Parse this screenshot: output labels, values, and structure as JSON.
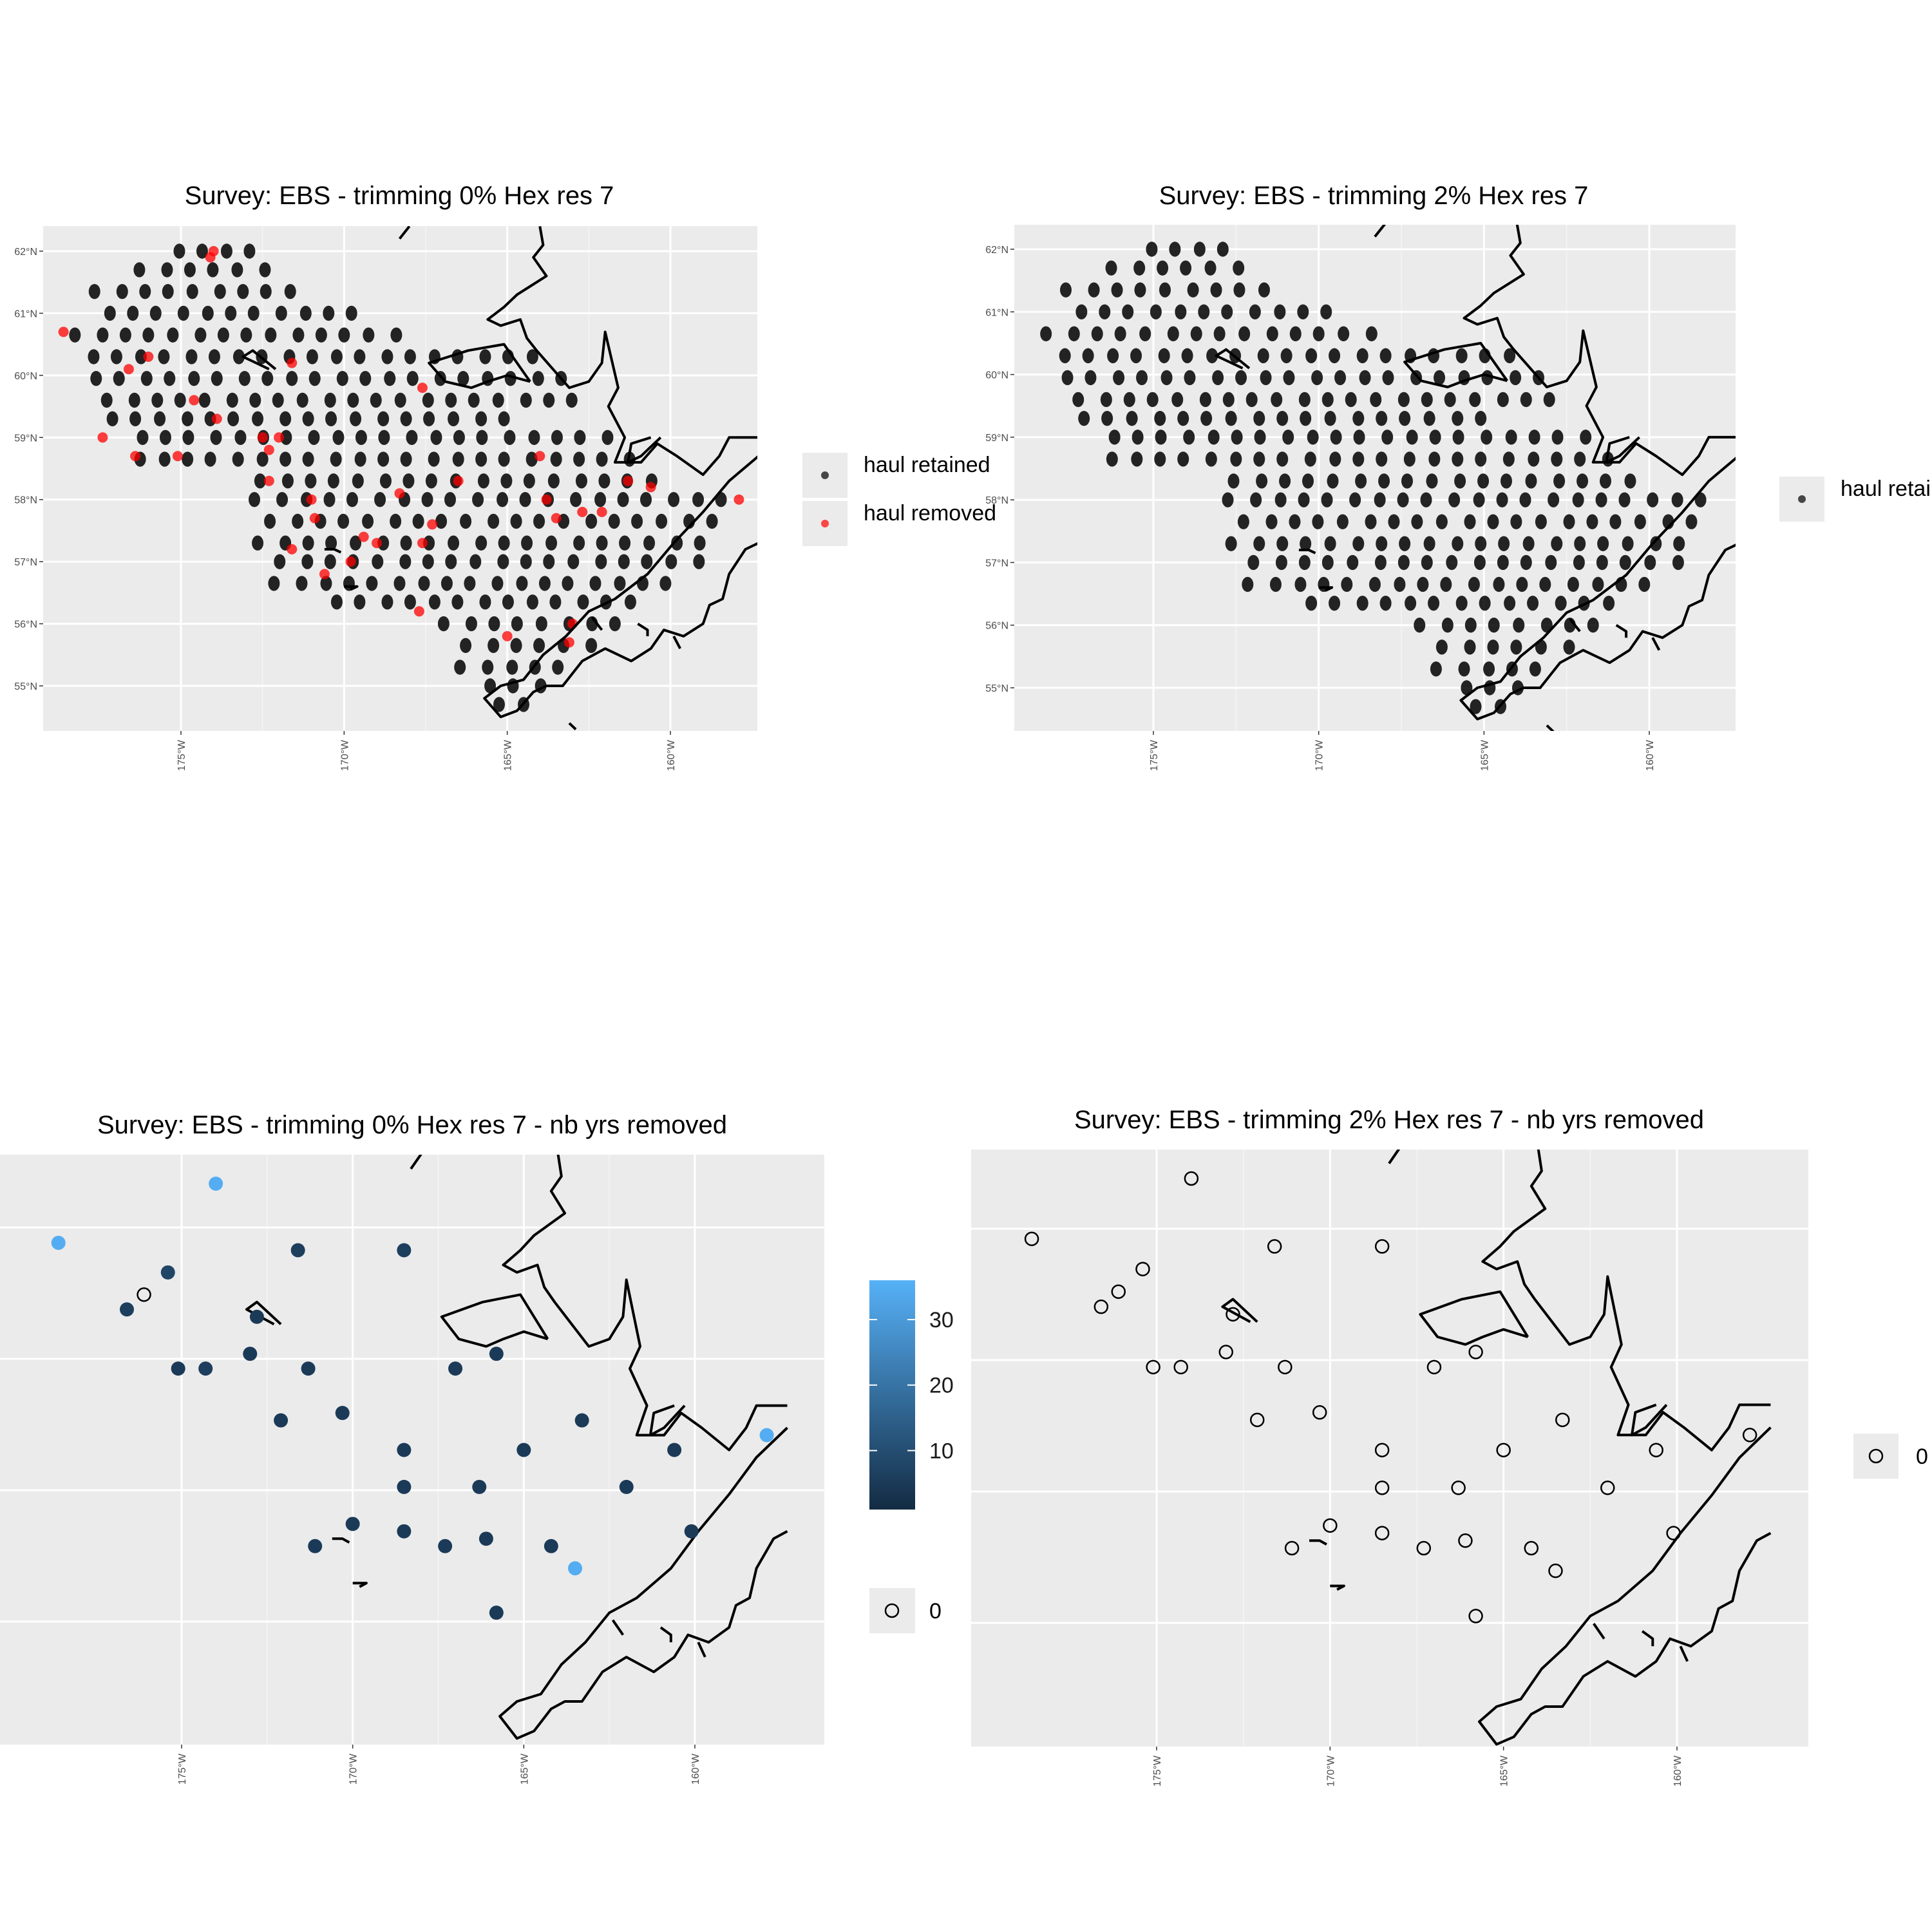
{
  "chart_data": [
    {
      "type": "scatter",
      "title": "Survey: EBS - trimming 0% Hex res 7",
      "x_ticks": [
        "175°W",
        "170°W",
        "165°W",
        "160°W"
      ],
      "y_ticks": [
        "62°N",
        "61°N",
        "60°N",
        "59°N",
        "58°N",
        "57°N",
        "56°N",
        "55°N"
      ],
      "xlim": [
        -179.2,
        -157.3
      ],
      "ylim": [
        54.2,
        62.4
      ],
      "grid": true,
      "legend": {
        "position": "right",
        "entries": [
          {
            "label": "haul retained",
            "color": "#000000"
          },
          {
            "label": "haul removed",
            "color": "#ff0000"
          }
        ]
      },
      "series": [
        {
          "name": "haul retained",
          "color": "#000000",
          "description_values": "regular station grid of haul positions (lon -178 to -158, lat 54.7 to 62)"
        },
        {
          "name": "haul removed",
          "color": "#ff0000",
          "x": [
            -174.0,
            -174.1,
            -178.6,
            -176.0,
            -174.6,
            -173.9,
            -172.0,
            -172.3,
            -177.4,
            -176.4,
            -175.1,
            -172.3,
            -176.6,
            -171.6,
            -167.6,
            -172.5,
            -171.0,
            -168.3,
            -166.5,
            -163.8,
            -162.1,
            -161.3,
            -160.6,
            -157.9,
            -170.9,
            -171.6,
            -169.8,
            -169.0,
            -167.3,
            -162.7,
            -163.5,
            -167.6,
            -163.0,
            -163.1,
            -164.0,
            -169.4,
            -170.6,
            -165.0,
            -167.7
          ],
          "y": [
            62.0,
            61.9,
            60.7,
            60.3,
            59.6,
            59.3,
            59.0,
            58.8,
            59.0,
            58.7,
            58.7,
            58.3,
            60.1,
            60.2,
            59.8,
            59.0,
            58.0,
            58.1,
            58.3,
            58.0,
            57.8,
            58.3,
            58.2,
            58.0,
            57.7,
            57.2,
            57.0,
            57.3,
            57.6,
            57.8,
            57.7,
            57.3,
            56.0,
            55.7,
            58.7,
            57.4,
            56.8,
            55.8,
            56.2
          ]
        }
      ]
    },
    {
      "type": "scatter",
      "title": "Survey: EBS - trimming 2% Hex res 7",
      "x_ticks": [
        "175°W",
        "170°W",
        "165°W",
        "160°W"
      ],
      "y_ticks": [
        "62°N",
        "61°N",
        "60°N",
        "59°N",
        "58°N",
        "57°N",
        "56°N",
        "55°N"
      ],
      "xlim": [
        -179.2,
        -157.3
      ],
      "ylim": [
        54.2,
        62.4
      ],
      "grid": true,
      "legend": {
        "position": "right",
        "entries": [
          {
            "label": "haul retained",
            "color": "#000000"
          }
        ]
      },
      "series": [
        {
          "name": "haul retained",
          "color": "#000000",
          "description_values": "regular station grid of haul positions (lon -178 to -158, lat 54.7 to 62)"
        }
      ]
    },
    {
      "type": "scatter",
      "title": "Survey: EBS - trimming 0% Hex res 7 - nb yrs removed",
      "x_ticks": [
        "175°W",
        "170°W",
        "165°W",
        "160°W"
      ],
      "grid": true,
      "colorbar": {
        "ticks": [
          "10",
          "20",
          "30"
        ],
        "low": "#132b43",
        "high": "#56b1f7",
        "range": [
          1,
          36
        ]
      },
      "legend": {
        "position": "right",
        "entries": [
          {
            "label": "0"
          }
        ]
      },
      "x": [
        -174.0,
        -176.1,
        -178.6,
        -175.4,
        -172.8,
        -176.6,
        -171.6,
        -174.3,
        -168.5,
        -175.1,
        -173.0,
        -171.3,
        -165.8,
        -165.0,
        -163.3,
        -167.0,
        -172.1,
        -166.3,
        -170.3,
        -168.5,
        -160.6,
        -157.9,
        -162.0,
        -170.0,
        -171.1,
        -168.5,
        -168.5,
        -166.1,
        -164.2,
        -160.1,
        -163.5,
        -167.3,
        -165.8
      ],
      "y": [
        62.0,
        60.5,
        61.2,
        60.8,
        60.2,
        60.3,
        61.1,
        59.5,
        61.1,
        59.5,
        59.7,
        59.5,
        59.7,
        58.4,
        58.8,
        59.5,
        58.8,
        57.9,
        58.9,
        58.4,
        58.4,
        58.6,
        57.9,
        57.4,
        57.1,
        57.3,
        57.9,
        57.2,
        57.1,
        57.3,
        56.8,
        57.1,
        56.2
      ],
      "values": [
        35,
        0,
        35,
        8,
        5,
        6,
        6,
        6,
        6,
        5,
        5,
        5,
        5,
        5,
        5,
        5,
        5,
        5,
        5,
        5,
        5,
        35,
        5,
        5,
        5,
        5,
        5,
        5,
        5,
        5,
        35,
        5,
        5
      ]
    },
    {
      "type": "scatter",
      "title": "Survey: EBS - trimming 2% Hex res 7 - nb yrs removed",
      "x_ticks": [
        "175°W",
        "170°W",
        "165°W",
        "160°W"
      ],
      "grid": true,
      "legend": {
        "position": "right",
        "entries": [
          {
            "label": "0"
          }
        ]
      },
      "values_all": 0
    }
  ]
}
